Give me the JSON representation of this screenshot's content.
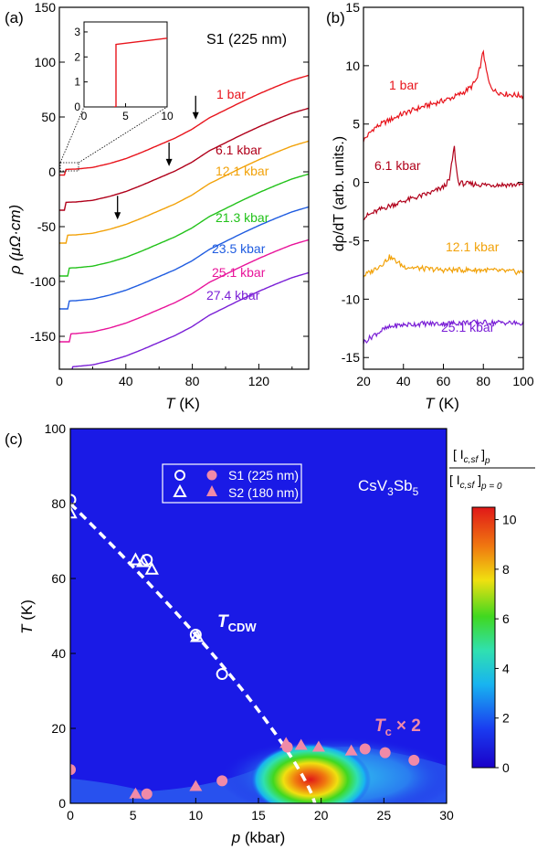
{
  "colors": {
    "p1": "#e8141c",
    "p6": "#b0001a",
    "p12": "#f2a20a",
    "p21": "#22c21a",
    "p23": "#1f5ce0",
    "p25": "#e8149a",
    "p27": "#7a1fd6",
    "map_bg": "#1a1ae6",
    "marker": "#f08aa8",
    "cdw_line": "#ffffff"
  },
  "panels": {
    "a": "(a)",
    "b": "(b)",
    "c": "(c)"
  },
  "chart_data": [
    {
      "id": "a",
      "type": "line",
      "annotation": "S1 (225 nm)",
      "xlabel": "T (K)",
      "ylabel": "ρ (μΩ·cm)",
      "xlim": [
        0,
        150
      ],
      "ylim": [
        -180,
        150
      ],
      "xticks": [
        0,
        40,
        80,
        120
      ],
      "yticks": [
        -150,
        -100,
        -50,
        0,
        50,
        100,
        150
      ],
      "series": [
        {
          "name": "1 bar",
          "color": "p1",
          "offset": 0,
          "anomaly_T": 82
        },
        {
          "name": "6.1 kbar",
          "color": "p6",
          "offset": -30,
          "anomaly_T": 66
        },
        {
          "name": "12.1 kbar",
          "color": "p12",
          "offset": -60,
          "anomaly_T": 35
        },
        {
          "name": "21.3 kbar",
          "color": "p21",
          "offset": -90
        },
        {
          "name": "23.5 kbar",
          "color": "p23",
          "offset": -120
        },
        {
          "name": "25.1 kbar",
          "color": "p25",
          "offset": -150
        },
        {
          "name": "27.4 kbar",
          "color": "p27",
          "offset": -180
        }
      ],
      "curve_1bar": {
        "T": [
          3.8,
          10,
          20,
          30,
          40,
          50,
          60,
          70,
          80,
          82,
          90,
          100,
          110,
          120,
          130,
          140,
          150
        ],
        "rho": [
          2.2,
          2.5,
          4,
          7.5,
          12,
          18,
          24.5,
          31,
          39,
          41,
          49,
          56.5,
          64,
          71,
          77.5,
          83.5,
          88
        ]
      },
      "inset": {
        "xlim": [
          0,
          10
        ],
        "ylim": [
          0,
          3.4
        ],
        "xticks": [
          0,
          5,
          10
        ],
        "yticks": [
          0,
          1,
          2,
          3
        ],
        "T": [
          3.6,
          3.85,
          3.85,
          10
        ],
        "rho": [
          0,
          0,
          2.5,
          2.75
        ]
      }
    },
    {
      "id": "b",
      "type": "line",
      "xlabel": "T (K)",
      "ylabel": "dρ/dT (arb. units.)",
      "xlim": [
        20,
        100
      ],
      "ylim": [
        -16,
        15
      ],
      "xticks": [
        20,
        40,
        60,
        80,
        100
      ],
      "yticks": [
        -15,
        -10,
        -5,
        0,
        5,
        10,
        15
      ],
      "series": [
        {
          "name": "1 bar",
          "color": "p1",
          "T": [
            20,
            25,
            30,
            40,
            50,
            60,
            65,
            70,
            74,
            77,
            79,
            80,
            81,
            83,
            86,
            90,
            95,
            100
          ],
          "y": [
            3.6,
            4.6,
            5.1,
            5.9,
            6.5,
            7.0,
            7.3,
            7.7,
            8.2,
            8.9,
            10.4,
            11.3,
            10.0,
            8.4,
            7.8,
            7.6,
            7.5,
            7.4
          ]
        },
        {
          "name": "6.1 kbar",
          "color": "p6",
          "T": [
            20,
            30,
            40,
            50,
            55,
            60,
            63,
            64.5,
            65.5,
            66.5,
            67.5,
            70,
            80,
            90,
            100
          ],
          "y": [
            -3.0,
            -2.2,
            -1.6,
            -1.1,
            -0.8,
            -0.4,
            0.2,
            2.0,
            3.0,
            1.2,
            0.0,
            -0.1,
            -0.2,
            -0.2,
            -0.2
          ]
        },
        {
          "name": "12.1 kbar",
          "color": "p12",
          "T": [
            20,
            25,
            30,
            33,
            36,
            40,
            50,
            60,
            70,
            80,
            90,
            100
          ],
          "y": [
            -8.0,
            -7.5,
            -6.9,
            -6.4,
            -6.7,
            -7.2,
            -7.4,
            -7.5,
            -7.5,
            -7.5,
            -7.6,
            -7.7
          ]
        },
        {
          "name": "25.1 kbar",
          "color": "p27",
          "T": [
            20,
            25,
            30,
            35,
            40,
            50,
            60,
            70,
            80,
            90,
            100
          ],
          "y": [
            -13.7,
            -13.1,
            -12.6,
            -12.3,
            -12.2,
            -12.1,
            -12.1,
            -12.0,
            -12.0,
            -12.0,
            -12.1
          ]
        }
      ]
    },
    {
      "id": "c",
      "type": "heatmap",
      "annotation": "CsV₃Sb₅",
      "xlabel": "p (kbar)",
      "ylabel": "T (K)",
      "xlim": [
        0,
        30
      ],
      "ylim": [
        0,
        100
      ],
      "xticks": [
        0,
        5,
        10,
        15,
        20,
        25,
        30
      ],
      "yticks": [
        0,
        20,
        40,
        60,
        80,
        100
      ],
      "legend": [
        {
          "label": "S1  (225 nm)",
          "markers": "circle"
        },
        {
          "label": "S2  (180 nm)",
          "markers": "triangle"
        }
      ],
      "label_tcdw": "T",
      "label_tcdw_sub": "CDW",
      "label_tc": "T",
      "label_tc_sub": "c",
      "label_tc_suffix": "× 2",
      "colorbar": {
        "title": "[I_c,sf]_p / [I_c,sf]_(p=0)",
        "range": [
          0,
          10.5
        ],
        "ticks": [
          0,
          2,
          4,
          6,
          8,
          10
        ]
      },
      "tcdw_S1": [
        [
          0,
          81
        ],
        [
          6.1,
          65
        ],
        [
          10,
          45
        ],
        [
          12.1,
          34.5
        ]
      ],
      "tcdw_S2": [
        [
          0,
          77.5
        ],
        [
          5.2,
          65
        ],
        [
          5.8,
          64.5
        ],
        [
          6.5,
          62.5
        ],
        [
          10.1,
          44.5
        ]
      ],
      "tc2_S1": [
        [
          0,
          9
        ],
        [
          6.1,
          2.5
        ],
        [
          12.1,
          6
        ],
        [
          17.3,
          15
        ],
        [
          23.5,
          14.5
        ],
        [
          25.1,
          13.5
        ],
        [
          27.4,
          11.5
        ]
      ],
      "tc2_S2": [
        [
          5.2,
          2.5
        ],
        [
          10,
          4.5
        ],
        [
          17.2,
          16
        ],
        [
          18.4,
          15.5
        ],
        [
          19.8,
          15
        ],
        [
          22.4,
          14
        ]
      ],
      "cdw_fit": {
        "T0": 80,
        "pc": 19.5,
        "exponent": 1.25
      }
    }
  ],
  "text": {
    "a_annot": "S1 (225 nm)",
    "a_ylabel": "ρ  (μΩ·cm)",
    "a_xlabel": "T",
    "a_xunit": " (K)",
    "b_ylabel": "dρ/dT  (arb. units.)",
    "b_xlabel": "T",
    "b_xunit": " (K)",
    "c_xlabel": "p",
    "c_xunit": " (kbar)",
    "c_ylabel": "T",
    "c_yunit": " (K)",
    "c_annot_main": "CsV",
    "c_annot_sub1": "3",
    "c_annot_mid": "Sb",
    "c_annot_sub2": "5",
    "cb_top": "[ I",
    "cb_top_sub": "c,sf",
    "cb_top_end": " ]",
    "cb_top_p": "p",
    "cb_bottom": "[ I",
    "cb_bottom_sub": "c,sf",
    "cb_bottom_end": " ]",
    "cb_bottom_p": "p = 0"
  }
}
